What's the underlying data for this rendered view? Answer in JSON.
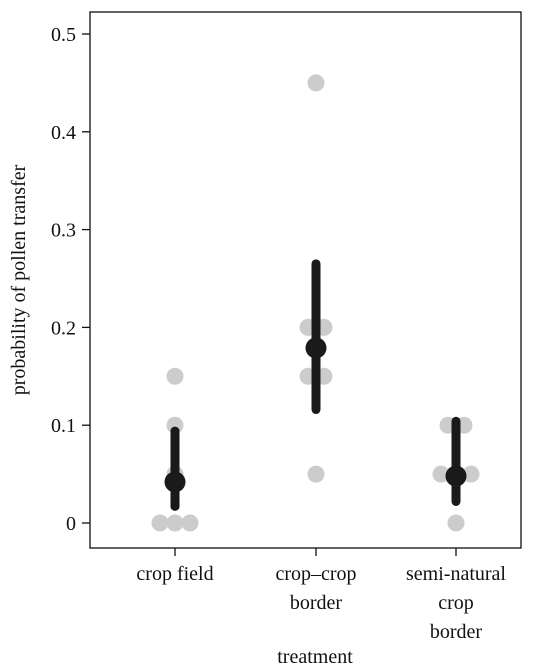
{
  "chart_data": {
    "type": "scatter",
    "title": "",
    "xlabel": "treatment",
    "ylabel": "probability of pollen transfer",
    "ylim": [
      -0.025,
      0.52
    ],
    "yticks": [
      0,
      0.1,
      0.2,
      0.3,
      0.4,
      0.5
    ],
    "ytick_labels": [
      "0",
      "0.1",
      "0.2",
      "0.3",
      "0.4",
      "0.5"
    ],
    "categories": [
      {
        "lines": [
          "crop field"
        ]
      },
      {
        "lines": [
          "crop–crop",
          "border"
        ]
      },
      {
        "lines": [
          "semi-natural",
          "crop",
          "border"
        ]
      }
    ],
    "raw_points": [
      [
        [
          -0.15,
          0
        ],
        [
          0,
          0
        ],
        [
          0.15,
          0
        ],
        [
          0,
          0.05
        ],
        [
          0,
          0.1
        ],
        [
          0,
          0.15
        ]
      ],
      [
        [
          0,
          0.05
        ],
        [
          -0.08,
          0.15
        ],
        [
          0.08,
          0.15
        ],
        [
          -0.08,
          0.2
        ],
        [
          0.08,
          0.2
        ],
        [
          0,
          0.45
        ]
      ],
      [
        [
          0,
          0
        ],
        [
          -0.15,
          0.05
        ],
        [
          0.15,
          0.05
        ],
        [
          -0.08,
          0.1
        ],
        [
          0.08,
          0.1
        ]
      ]
    ],
    "estimates": [
      {
        "mean": 0.042,
        "lower": 0.017,
        "upper": 0.094
      },
      {
        "mean": 0.179,
        "lower": 0.116,
        "upper": 0.265
      },
      {
        "mean": 0.048,
        "lower": 0.022,
        "upper": 0.104
      }
    ],
    "colors": {
      "raw_points": "#cccccc",
      "estimate": "#1a1a1a",
      "axis": "#111111"
    }
  }
}
